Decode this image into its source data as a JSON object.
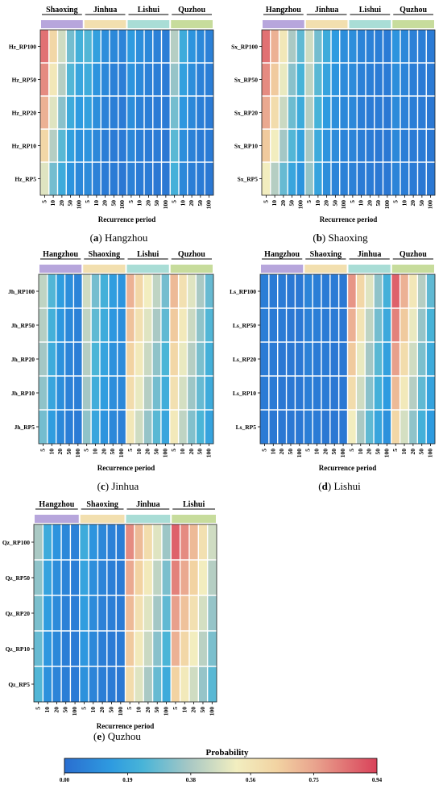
{
  "figure": {
    "legend": {
      "title": "Probability",
      "ticks": [
        "0.00",
        "0.19",
        "0.38",
        "0.56",
        "0.75",
        "0.94"
      ]
    }
  },
  "chart_data": [
    {
      "type": "heatmap",
      "caption_letter": "(a)",
      "caption_name": "Hangzhou",
      "xlabel": "Recurrence period",
      "groups": [
        "Shaoxing",
        "Jinhua",
        "Lishui",
        "Quzhou"
      ],
      "x_ticks": [
        "5",
        "10",
        "20",
        "50",
        "100"
      ],
      "rows": [
        "Hz_RP100",
        "Hz_RP50",
        "Hz_RP20",
        "Hz_RP10",
        "Hz_RP5"
      ],
      "values": [
        [
          0.85,
          0.62,
          0.45,
          0.3,
          0.22,
          0.25,
          0.16,
          0.1,
          0.08,
          0.07,
          0.14,
          0.1,
          0.08,
          0.06,
          0.05,
          0.4,
          0.2,
          0.12,
          0.08,
          0.06
        ],
        [
          0.8,
          0.55,
          0.4,
          0.25,
          0.18,
          0.2,
          0.12,
          0.08,
          0.06,
          0.05,
          0.12,
          0.08,
          0.06,
          0.05,
          0.04,
          0.35,
          0.16,
          0.1,
          0.06,
          0.05
        ],
        [
          0.72,
          0.48,
          0.33,
          0.2,
          0.14,
          0.16,
          0.1,
          0.06,
          0.05,
          0.04,
          0.1,
          0.06,
          0.05,
          0.04,
          0.04,
          0.3,
          0.13,
          0.08,
          0.05,
          0.04
        ],
        [
          0.62,
          0.4,
          0.26,
          0.16,
          0.11,
          0.12,
          0.08,
          0.05,
          0.04,
          0.04,
          0.08,
          0.05,
          0.04,
          0.04,
          0.03,
          0.26,
          0.1,
          0.06,
          0.04,
          0.04
        ],
        [
          0.48,
          0.3,
          0.2,
          0.12,
          0.08,
          0.09,
          0.06,
          0.04,
          0.04,
          0.03,
          0.06,
          0.04,
          0.04,
          0.03,
          0.03,
          0.22,
          0.08,
          0.05,
          0.04,
          0.03
        ]
      ]
    },
    {
      "type": "heatmap",
      "caption_letter": "(b)",
      "caption_name": "Shaoxing",
      "xlabel": "Recurrence period",
      "groups": [
        "Hangzhou",
        "Jinhua",
        "Lishui",
        "Quzhou"
      ],
      "x_ticks": [
        "5",
        "10",
        "20",
        "50",
        "100"
      ],
      "rows": [
        "Sx_RP100",
        "Sx_RP50",
        "Sx_RP20",
        "Sx_RP10",
        "Sx_RP5"
      ],
      "values": [
        [
          0.85,
          0.72,
          0.55,
          0.38,
          0.27,
          0.45,
          0.3,
          0.2,
          0.14,
          0.1,
          0.1,
          0.07,
          0.06,
          0.05,
          0.04,
          0.12,
          0.08,
          0.06,
          0.05,
          0.04
        ],
        [
          0.8,
          0.66,
          0.5,
          0.33,
          0.23,
          0.42,
          0.26,
          0.17,
          0.12,
          0.09,
          0.09,
          0.06,
          0.05,
          0.04,
          0.04,
          0.1,
          0.07,
          0.05,
          0.04,
          0.04
        ],
        [
          0.74,
          0.6,
          0.44,
          0.29,
          0.2,
          0.4,
          0.23,
          0.14,
          0.1,
          0.08,
          0.08,
          0.05,
          0.04,
          0.04,
          0.03,
          0.09,
          0.06,
          0.05,
          0.04,
          0.03
        ],
        [
          0.66,
          0.52,
          0.37,
          0.25,
          0.17,
          0.38,
          0.2,
          0.12,
          0.09,
          0.07,
          0.07,
          0.05,
          0.04,
          0.03,
          0.03,
          0.08,
          0.05,
          0.04,
          0.04,
          0.03
        ],
        [
          0.52,
          0.4,
          0.28,
          0.18,
          0.12,
          0.35,
          0.17,
          0.1,
          0.07,
          0.06,
          0.06,
          0.04,
          0.04,
          0.03,
          0.03,
          0.07,
          0.05,
          0.04,
          0.03,
          0.03
        ]
      ]
    },
    {
      "type": "heatmap",
      "caption_letter": "(c)",
      "caption_name": "Jinhua",
      "xlabel": "Recurrence period",
      "groups": [
        "Hangzhou",
        "Shaoxing",
        "Lishui",
        "Quzhou"
      ],
      "x_ticks": [
        "5",
        "10",
        "20",
        "50",
        "100"
      ],
      "rows": [
        "Jh_RP100",
        "Jh_RP50",
        "Jh_RP20",
        "Jh_RP10",
        "Jh_RP5"
      ],
      "values": [
        [
          0.42,
          0.25,
          0.15,
          0.1,
          0.07,
          0.45,
          0.3,
          0.22,
          0.15,
          0.12,
          0.72,
          0.62,
          0.52,
          0.42,
          0.3,
          0.7,
          0.58,
          0.48,
          0.38,
          0.28
        ],
        [
          0.4,
          0.22,
          0.13,
          0.08,
          0.06,
          0.42,
          0.27,
          0.2,
          0.13,
          0.1,
          0.68,
          0.58,
          0.48,
          0.38,
          0.27,
          0.66,
          0.54,
          0.44,
          0.34,
          0.25
        ],
        [
          0.37,
          0.2,
          0.11,
          0.07,
          0.05,
          0.4,
          0.24,
          0.17,
          0.11,
          0.09,
          0.64,
          0.54,
          0.44,
          0.34,
          0.24,
          0.62,
          0.5,
          0.4,
          0.31,
          0.22
        ],
        [
          0.34,
          0.18,
          0.1,
          0.06,
          0.05,
          0.37,
          0.21,
          0.15,
          0.1,
          0.08,
          0.6,
          0.5,
          0.4,
          0.3,
          0.21,
          0.58,
          0.46,
          0.36,
          0.28,
          0.2
        ],
        [
          0.3,
          0.15,
          0.08,
          0.05,
          0.04,
          0.34,
          0.18,
          0.12,
          0.08,
          0.06,
          0.55,
          0.45,
          0.35,
          0.26,
          0.18,
          0.54,
          0.42,
          0.32,
          0.24,
          0.17
        ]
      ]
    },
    {
      "type": "heatmap",
      "caption_letter": "(d)",
      "caption_name": "Lishui",
      "xlabel": "Recurrence period",
      "groups": [
        "Hangzhou",
        "Shaoxing",
        "Jinhua",
        "Quzhou"
      ],
      "x_ticks": [
        "5",
        "10",
        "20",
        "50",
        "100"
      ],
      "rows": [
        "Ls_RP100",
        "Ls_RP50",
        "Ls_RP20",
        "Ls_RP10",
        "Ls_RP5"
      ],
      "values": [
        [
          0.05,
          0.04,
          0.04,
          0.03,
          0.03,
          0.07,
          0.05,
          0.04,
          0.04,
          0.03,
          0.78,
          0.62,
          0.48,
          0.34,
          0.22,
          0.88,
          0.72,
          0.55,
          0.4,
          0.27
        ],
        [
          0.05,
          0.04,
          0.04,
          0.03,
          0.03,
          0.06,
          0.05,
          0.04,
          0.04,
          0.03,
          0.72,
          0.56,
          0.42,
          0.3,
          0.19,
          0.82,
          0.66,
          0.5,
          0.35,
          0.23
        ],
        [
          0.04,
          0.04,
          0.03,
          0.03,
          0.03,
          0.06,
          0.04,
          0.04,
          0.03,
          0.03,
          0.66,
          0.5,
          0.37,
          0.26,
          0.16,
          0.76,
          0.6,
          0.45,
          0.31,
          0.2
        ],
        [
          0.04,
          0.04,
          0.03,
          0.03,
          0.03,
          0.05,
          0.04,
          0.04,
          0.03,
          0.03,
          0.6,
          0.45,
          0.33,
          0.22,
          0.14,
          0.7,
          0.54,
          0.4,
          0.27,
          0.17
        ],
        [
          0.04,
          0.03,
          0.03,
          0.03,
          0.03,
          0.05,
          0.04,
          0.03,
          0.03,
          0.03,
          0.52,
          0.38,
          0.27,
          0.18,
          0.11,
          0.62,
          0.46,
          0.34,
          0.22,
          0.14
        ]
      ]
    },
    {
      "type": "heatmap",
      "caption_letter": "(e)",
      "caption_name": "Quzhou",
      "xlabel": "Recurrence period",
      "groups": [
        "Hangzhou",
        "Shaoxing",
        "Jinhua",
        "Lishui"
      ],
      "x_ticks": [
        "5",
        "10",
        "20",
        "50",
        "100"
      ],
      "rows": [
        "Qz_RP100",
        "Qz_RP50",
        "Qz_RP20",
        "Qz_RP10",
        "Qz_RP5"
      ],
      "values": [
        [
          0.38,
          0.2,
          0.12,
          0.08,
          0.06,
          0.2,
          0.12,
          0.08,
          0.06,
          0.05,
          0.8,
          0.7,
          0.6,
          0.48,
          0.36,
          0.88,
          0.8,
          0.7,
          0.58,
          0.45
        ],
        [
          0.34,
          0.17,
          0.1,
          0.07,
          0.05,
          0.17,
          0.1,
          0.07,
          0.05,
          0.04,
          0.74,
          0.64,
          0.54,
          0.42,
          0.31,
          0.82,
          0.74,
          0.64,
          0.52,
          0.4
        ],
        [
          0.31,
          0.15,
          0.09,
          0.06,
          0.05,
          0.15,
          0.09,
          0.06,
          0.05,
          0.04,
          0.7,
          0.58,
          0.48,
          0.37,
          0.27,
          0.76,
          0.68,
          0.58,
          0.46,
          0.35
        ],
        [
          0.28,
          0.13,
          0.08,
          0.05,
          0.04,
          0.13,
          0.08,
          0.05,
          0.04,
          0.04,
          0.66,
          0.54,
          0.44,
          0.33,
          0.24,
          0.72,
          0.62,
          0.52,
          0.41,
          0.31
        ],
        [
          0.25,
          0.11,
          0.07,
          0.05,
          0.04,
          0.11,
          0.07,
          0.05,
          0.04,
          0.03,
          0.6,
          0.48,
          0.38,
          0.28,
          0.2,
          0.64,
          0.54,
          0.45,
          0.35,
          0.26
        ]
      ]
    }
  ]
}
